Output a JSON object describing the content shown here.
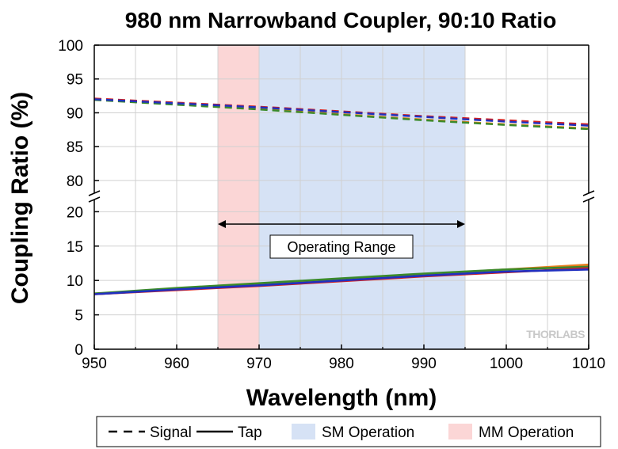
{
  "chart_data": {
    "type": "line",
    "title": "980 nm Narrowband Coupler, 90:10 Ratio",
    "xlabel": "Wavelength (nm)",
    "ylabel": "Coupling Ratio (%)",
    "xlim": [
      950,
      1010
    ],
    "x_ticks": [
      "950",
      "960",
      "970",
      "980",
      "990",
      "1000",
      "1010"
    ],
    "y_upper_ticks": [
      "80",
      "85",
      "90",
      "95",
      "100"
    ],
    "y_lower_ticks": [
      "0",
      "5",
      "10",
      "15",
      "20"
    ],
    "ylim_lower": [
      0,
      22
    ],
    "ylim_upper": [
      78,
      100
    ],
    "axis_break": true,
    "grid": true,
    "bands": [
      {
        "name": "MM Operation",
        "x": [
          965,
          970
        ],
        "color": "#fbd6d6"
      },
      {
        "name": "SM Operation",
        "x": [
          970,
          995
        ],
        "color": "#d6e2f5"
      }
    ],
    "annotation": {
      "text": "Operating Range",
      "x": [
        965,
        995
      ],
      "arrow_y": 18.2
    },
    "watermark": "THORLABS",
    "series": [
      {
        "style": "dashed",
        "color": "#e87e1e",
        "x": [
          950,
          960,
          970,
          980,
          990,
          1000,
          1010
        ],
        "values": [
          92.0,
          91.3,
          90.6,
          89.8,
          89.0,
          88.3,
          87.7
        ]
      },
      {
        "style": "dashed",
        "color": "#3a8a2a",
        "x": [
          950,
          960,
          970,
          980,
          990,
          1000,
          1010
        ],
        "values": [
          91.9,
          91.2,
          90.5,
          89.7,
          88.9,
          88.2,
          87.6
        ]
      },
      {
        "style": "dashed",
        "color": "#d42020",
        "x": [
          950,
          960,
          970,
          980,
          990,
          1000,
          1010
        ],
        "values": [
          92.1,
          91.5,
          90.9,
          90.2,
          89.5,
          88.9,
          88.3
        ]
      },
      {
        "style": "dashed",
        "color": "#2030c0",
        "x": [
          950,
          960,
          970,
          980,
          990,
          1000,
          1010
        ],
        "values": [
          92.0,
          91.4,
          90.8,
          90.1,
          89.4,
          88.7,
          88.1
        ]
      },
      {
        "style": "solid",
        "color": "#e87e1e",
        "x": [
          950,
          960,
          970,
          980,
          990,
          1000,
          1010
        ],
        "values": [
          8.0,
          8.7,
          9.4,
          10.1,
          10.9,
          11.6,
          12.3
        ]
      },
      {
        "style": "solid",
        "color": "#3a8a2a",
        "x": [
          950,
          960,
          970,
          980,
          990,
          1000,
          1010
        ],
        "values": [
          8.1,
          8.9,
          9.6,
          10.3,
          11.0,
          11.6,
          12.0
        ]
      },
      {
        "style": "solid",
        "color": "#d42020",
        "x": [
          950,
          960,
          970,
          980,
          990,
          1000,
          1010
        ],
        "values": [
          8.0,
          8.6,
          9.2,
          9.9,
          10.6,
          11.2,
          11.8
        ]
      },
      {
        "style": "solid",
        "color": "#2030c0",
        "x": [
          950,
          960,
          970,
          980,
          990,
          1000,
          1010
        ],
        "values": [
          8.0,
          8.7,
          9.3,
          10.0,
          10.7,
          11.3,
          11.6
        ]
      }
    ],
    "legend": {
      "placement": "bottom",
      "entries": [
        {
          "label": "Signal",
          "kind": "dash",
          "color": "#000000"
        },
        {
          "label": "Tap",
          "kind": "line",
          "color": "#000000"
        },
        {
          "label": "SM Operation",
          "kind": "box",
          "color": "#d6e2f5"
        },
        {
          "label": "MM Operation",
          "kind": "box",
          "color": "#fbd6d6"
        }
      ]
    }
  }
}
